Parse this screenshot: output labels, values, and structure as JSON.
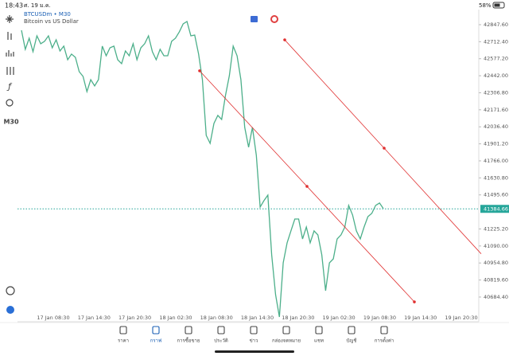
{
  "status": {
    "time": "18:43",
    "date": "ศ. 19 ม.ค.",
    "battery": "58%"
  },
  "symbol": {
    "name": "BTCUSDm • M30",
    "description": "Bitcoin vs US Dollar"
  },
  "toolbar": {
    "timeframe": "M30"
  },
  "chart_data": {
    "type": "line",
    "color": "#4caf8a",
    "values": [
      42803,
      42652,
      42740,
      42633,
      42759,
      42696,
      42715,
      42759,
      42664,
      42727,
      42639,
      42677,
      42569,
      42614,
      42588,
      42474,
      42437,
      42316,
      42411,
      42361,
      42411,
      42677,
      42601,
      42664,
      42677,
      42569,
      42538,
      42639,
      42601,
      42696,
      42569,
      42664,
      42696,
      42759,
      42633,
      42569,
      42652,
      42601,
      42601,
      42715,
      42740,
      42791,
      42854,
      42873,
      42759,
      42765,
      42614,
      42411,
      41968,
      41905,
      42063,
      42127,
      42095,
      42285,
      42443,
      42677,
      42601,
      42411,
      42032,
      41874,
      42032,
      41810,
      41399,
      41450,
      41494,
      41020,
      40704,
      40526,
      40956,
      41115,
      41210,
      41304,
      41304,
      41146,
      41241,
      41115,
      41210,
      41178,
      41020,
      40735,
      40956,
      40988,
      41146,
      41178,
      41241,
      41412,
      41336,
      41210,
      41146,
      41241,
      41323,
      41349,
      41412,
      41431,
      41387
    ],
    "ylim": [
      40526,
      42955
    ],
    "yticks": [
      {
        "value": 42847.6,
        "label": "42847.60"
      },
      {
        "value": 42712.4,
        "label": "42712.40"
      },
      {
        "value": 42577.2,
        "label": "42577.20"
      },
      {
        "value": 42442,
        "label": "42442.00"
      },
      {
        "value": 42306.8,
        "label": "42306.80"
      },
      {
        "value": 42171.6,
        "label": "42171.60"
      },
      {
        "value": 42036.4,
        "label": "42036.40"
      },
      {
        "value": 41901.2,
        "label": "41901.20"
      },
      {
        "value": 41766,
        "label": "41766.00"
      },
      {
        "value": 41630.8,
        "label": "41630.80"
      },
      {
        "value": 41495.6,
        "label": "41495.60"
      },
      {
        "value": 41225.2,
        "label": "41225.20"
      },
      {
        "value": 41090,
        "label": "41090.00"
      },
      {
        "value": 40954.8,
        "label": "40954.80"
      },
      {
        "value": 40819.6,
        "label": "40819.60"
      },
      {
        "value": 40684.4,
        "label": "40684.40"
      }
    ],
    "x_labels": [
      "17 Jan 08:30",
      "17 Jan 14:30",
      "17 Jan 20:30",
      "18 Jan 02:30",
      "18 Jan 08:30",
      "18 Jan 14:30",
      "18 Jan 20:30",
      "19 Jan 02:30",
      "19 Jan 08:30",
      "19 Jan 14:30",
      "19 Jan 20:30"
    ],
    "current_price": 41384.66,
    "trendlines": [
      {
        "values": [
          42481,
          41563,
          40646
        ],
        "color": "#e03030"
      },
      {
        "values": [
          42727,
          41867
        ],
        "color": "#e03030"
      }
    ]
  },
  "nav": {
    "items": [
      "ราคา",
      "กราฟ",
      "การซื้อขาย",
      "ประวัติ",
      "ข่าว",
      "กล่องจดหมาย",
      "แชท",
      "บัญชี",
      "การตั้งค่า"
    ],
    "active": 1
  }
}
